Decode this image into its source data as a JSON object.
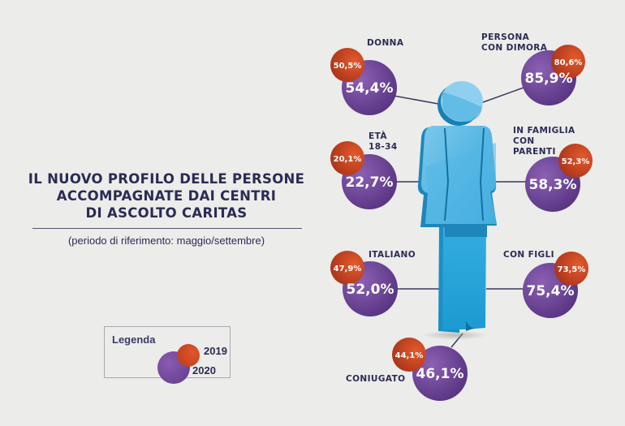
{
  "title_lines": [
    "IL NUOVO PROFILO DELLE PERSONE",
    "ACCOMPAGNATE DAI CENTRI",
    "DI ASCOLTO CARITAS"
  ],
  "subtitle": "(periodo di riferimento: maggio/settembre)",
  "legend": {
    "title": "Legenda",
    "year_2019": "2019",
    "year_2020": "2020"
  },
  "colors": {
    "y2019": "#c9431f",
    "y2020": "#6b449a",
    "figure": "#2aa6d8",
    "text": "#2b2b55",
    "background": "#ececea"
  },
  "chart_data": {
    "type": "table",
    "title": "IL NUOVO PROFILO DELLE PERSONE ACCOMPAGNATE DAI CENTRI DI ASCOLTO CARITAS",
    "series_names": [
      "2019",
      "2020"
    ],
    "categories": [
      "DONNA",
      "PERSONA CON DIMORA",
      "ETÀ 18-34",
      "IN FAMIGLIA CON PARENTI",
      "ITALIANO",
      "CON FIGLI",
      "CONIUGATO"
    ],
    "items": [
      {
        "label_lines": [
          "DONNA"
        ],
        "v2019": "50,5%",
        "v2020": "54,4%",
        "value_2019": 50.5,
        "value_2020": 54.4
      },
      {
        "label_lines": [
          "PERSONA",
          "CON DIMORA"
        ],
        "v2019": "80,6%",
        "v2020": "85,9%",
        "value_2019": 80.6,
        "value_2020": 85.9
      },
      {
        "label_lines": [
          "ETÀ",
          "18-34"
        ],
        "v2019": "20,1%",
        "v2020": "22,7%",
        "value_2019": 20.1,
        "value_2020": 22.7
      },
      {
        "label_lines": [
          "IN FAMIGLIA",
          "CON",
          "PARENTI"
        ],
        "v2019": "52,3%",
        "v2020": "58,3%",
        "value_2019": 52.3,
        "value_2020": 58.3
      },
      {
        "label_lines": [
          "ITALIANO"
        ],
        "v2019": "47,9%",
        "v2020": "52,0%",
        "value_2019": 47.9,
        "value_2020": 52.0
      },
      {
        "label_lines": [
          "CON FIGLI"
        ],
        "v2019": "73,5%",
        "v2020": "75,4%",
        "value_2019": 73.5,
        "value_2020": 75.4
      },
      {
        "label_lines": [
          "CONIUGATO"
        ],
        "v2019": "44,1%",
        "v2020": "46,1%",
        "value_2019": 44.1,
        "value_2020": 46.1
      }
    ]
  }
}
